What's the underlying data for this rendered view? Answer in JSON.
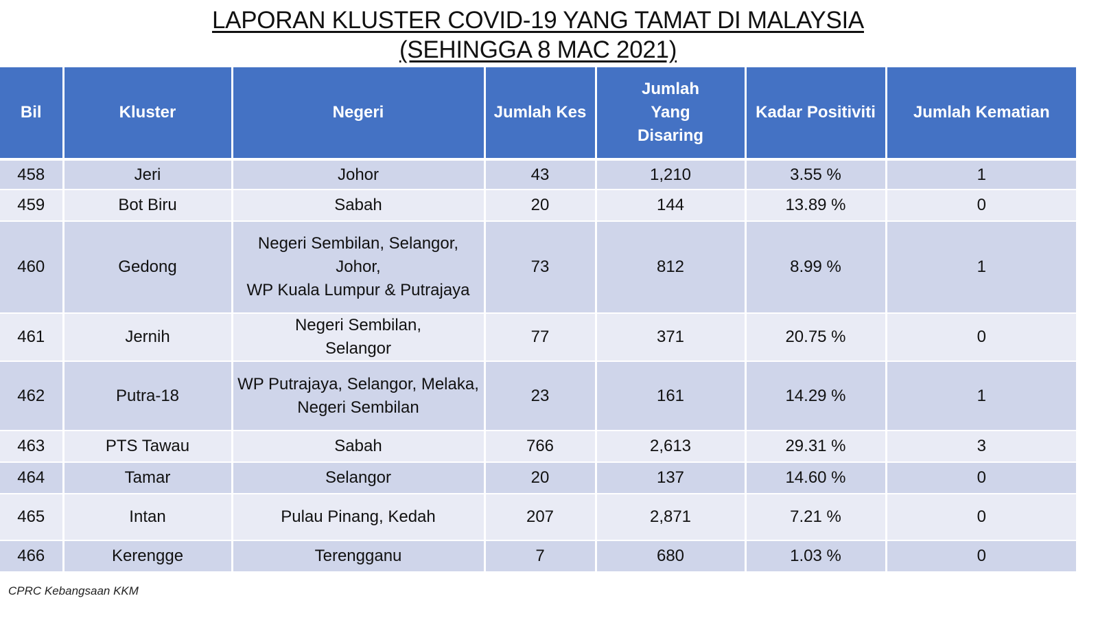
{
  "title": {
    "line1": "LAPORAN KLUSTER COVID-19 YANG TAMAT DI MALAYSIA",
    "line2": "(SEHINGGA 8 MAC 2021)"
  },
  "colors": {
    "header_background": "#4472c4",
    "row_dark": "#cfd5ea",
    "row_light": "#e9ebf5"
  },
  "table": {
    "headers": [
      "Bil",
      "Kluster",
      "Negeri",
      "Jumlah Kes",
      "Jumlah Yang Disaring",
      "Kadar Positiviti",
      "Jumlah Kematian"
    ],
    "rows": [
      {
        "bil": "458",
        "kluster": "Jeri",
        "negeri": [
          "Johor"
        ],
        "kes": "43",
        "disaring": "1,210",
        "positiviti": "3.55 %",
        "kematian": "1"
      },
      {
        "bil": "459",
        "kluster": "Bot Biru",
        "negeri": [
          "Sabah"
        ],
        "kes": "20",
        "disaring": "144",
        "positiviti": "13.89 %",
        "kematian": "0"
      },
      {
        "bil": "460",
        "kluster": "Gedong",
        "negeri": [
          "Negeri Sembilan, Selangor,",
          "Johor,",
          "WP Kuala Lumpur & Putrajaya"
        ],
        "kes": "73",
        "disaring": "812",
        "positiviti": "8.99 %",
        "kematian": "1"
      },
      {
        "bil": "461",
        "kluster": "Jernih",
        "negeri": [
          "Negeri Sembilan,",
          "Selangor"
        ],
        "kes": "77",
        "disaring": "371",
        "positiviti": "20.75 %",
        "kematian": "0"
      },
      {
        "bil": "462",
        "kluster": "Putra-18",
        "negeri": [
          "WP Putrajaya, Selangor, Melaka,",
          "Negeri Sembilan"
        ],
        "kes": "23",
        "disaring": "161",
        "positiviti": "14.29 %",
        "kematian": "1"
      },
      {
        "bil": "463",
        "kluster": "PTS Tawau",
        "negeri": [
          "Sabah"
        ],
        "kes": "766",
        "disaring": "2,613",
        "positiviti": "29.31 %",
        "kematian": "3"
      },
      {
        "bil": "464",
        "kluster": "Tamar",
        "negeri": [
          "Selangor"
        ],
        "kes": "20",
        "disaring": "137",
        "positiviti": "14.60 %",
        "kematian": "0"
      },
      {
        "bil": "465",
        "kluster": "Intan",
        "negeri": [
          "Pulau Pinang, Kedah"
        ],
        "kes": "207",
        "disaring": "2,871",
        "positiviti": "7.21 %",
        "kematian": "0"
      },
      {
        "bil": "466",
        "kluster": "Kerengge",
        "negeri": [
          "Terengganu"
        ],
        "kes": "7",
        "disaring": "680",
        "positiviti": "1.03 %",
        "kematian": "0"
      }
    ]
  },
  "footer": {
    "source": "CPRC Kebangsaan KKM"
  }
}
